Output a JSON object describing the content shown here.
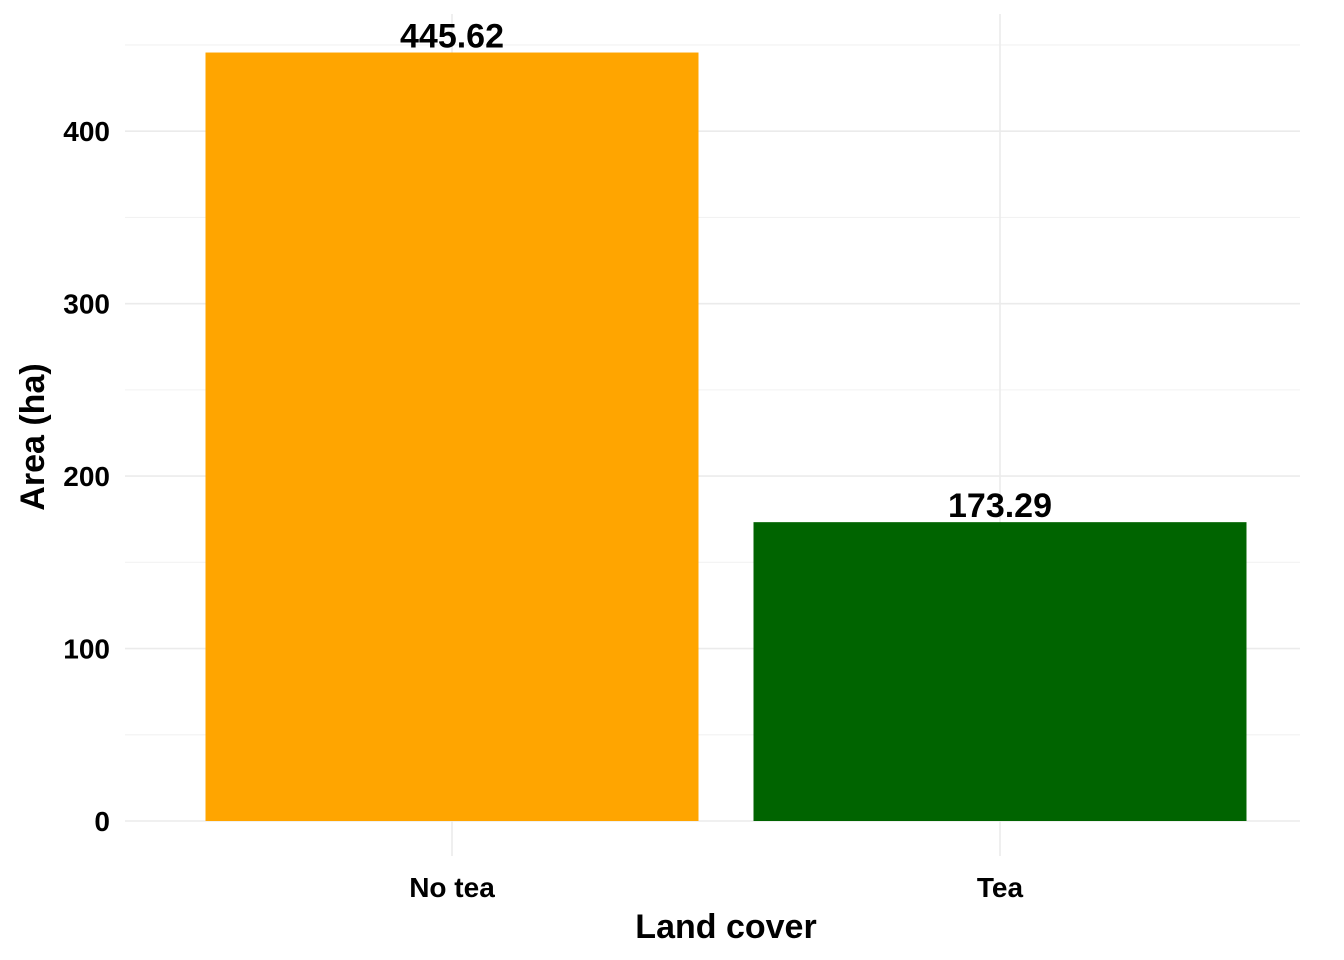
{
  "chart_data": {
    "type": "bar",
    "categories": [
      "No tea",
      "Tea"
    ],
    "values": [
      445.62,
      173.29
    ],
    "data_labels": [
      "445.62",
      "173.29"
    ],
    "colors": [
      "#FFA500",
      "#006400"
    ],
    "title": "",
    "xlabel": "Land cover",
    "ylabel": "Area (ha)",
    "ylim": [
      0,
      450
    ],
    "yticks": [
      0,
      100,
      200,
      300,
      400
    ],
    "ytick_labels": [
      "0",
      "100",
      "200",
      "300",
      "400"
    ],
    "grid": true,
    "legend": "none"
  }
}
